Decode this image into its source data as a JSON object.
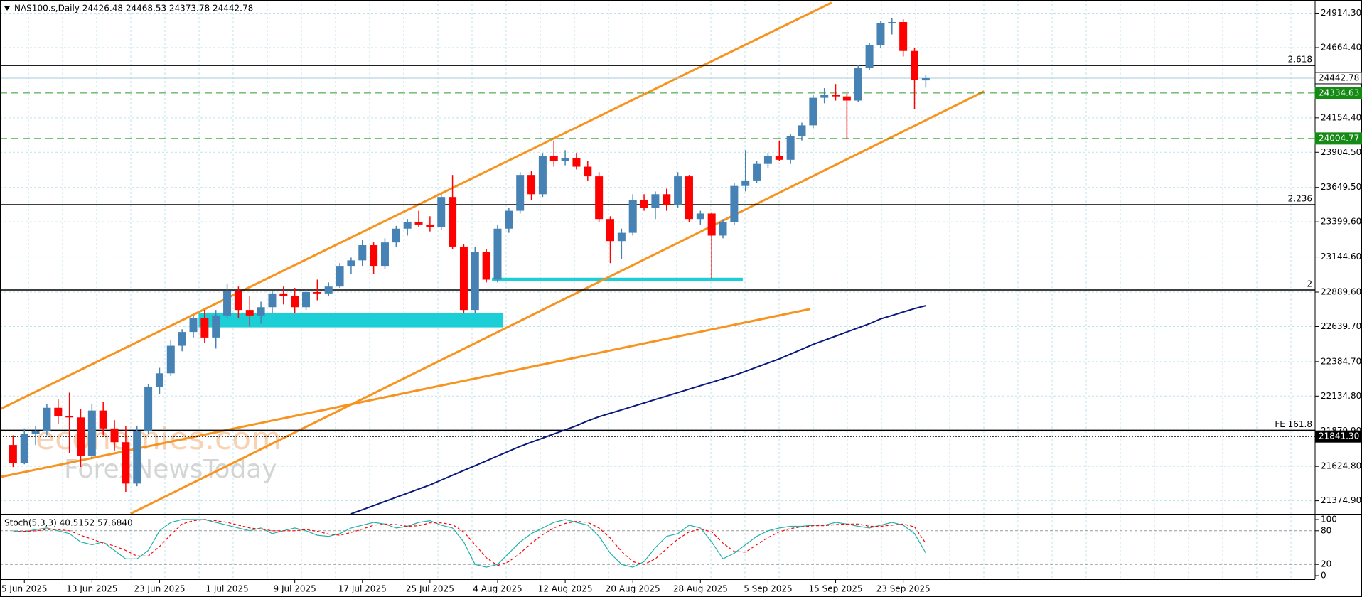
{
  "chart_data": {
    "type": "candlestick",
    "title": "NAS100.s,Daily 24426.48 24468.53 24373.78 24442.78",
    "watermark": [
      "economies.com",
      "ForexNewsToday"
    ],
    "categories": [
      null,
      "5 Jun 2025",
      null,
      null,
      null,
      null,
      null,
      "13 Jun 2025",
      null,
      null,
      null,
      null,
      null,
      "23 Jun 2025",
      null,
      null,
      null,
      null,
      null,
      "1 Jul 2025",
      null,
      null,
      null,
      null,
      null,
      "9 Jul 2025",
      null,
      null,
      null,
      null,
      null,
      "17 Jul 2025",
      null,
      null,
      null,
      null,
      null,
      "25 Jul 2025",
      null,
      null,
      null,
      null,
      null,
      "4 Aug 2025",
      null,
      null,
      null,
      null,
      null,
      "12 Aug 2025",
      null,
      null,
      null,
      null,
      null,
      "20 Aug 2025",
      null,
      null,
      null,
      null,
      null,
      "28 Aug 2025",
      null,
      null,
      null,
      null,
      null,
      "5 Sep 2025",
      null,
      null,
      null,
      null,
      null,
      "15 Sep 2025",
      null,
      null,
      null,
      null,
      null,
      "23 Sep 2025",
      null,
      null
    ],
    "open": [
      21780,
      21650,
      21860,
      21880,
      22050,
      21990,
      21980,
      21700,
      22030,
      21900,
      21800,
      21500,
      21880,
      22200,
      22300,
      22500,
      22600,
      22700,
      22560,
      22720,
      22900,
      22760,
      22720,
      22780,
      22880,
      22860,
      22780,
      22890,
      22880,
      22930,
      23080,
      23120,
      23230,
      23080,
      23250,
      23350,
      23400,
      23380,
      23360,
      23580,
      23220,
      22760,
      23180,
      22980,
      23350,
      23480,
      23740,
      23600,
      23880,
      23840,
      23860,
      23800,
      23730,
      23420,
      23260,
      23320,
      23560,
      23500,
      23600,
      23520,
      23730,
      23420,
      23460,
      23300,
      23400,
      23660,
      23700,
      23820,
      23880,
      23850,
      24020,
      24100,
      24300,
      24320,
      24310,
      24280,
      24520,
      24680,
      24840,
      24850,
      24640,
      24426.48
    ],
    "high": [
      21850,
      21900,
      21920,
      22080,
      22110,
      22160,
      22040,
      22080,
      22090,
      21960,
      21920,
      21920,
      22220,
      22340,
      22540,
      22620,
      22720,
      22760,
      22760,
      22950,
      22930,
      22860,
      22820,
      22900,
      22930,
      22920,
      22910,
      22980,
      22960,
      23100,
      23140,
      23270,
      23250,
      23280,
      23370,
      23420,
      23480,
      23440,
      23600,
      23740,
      23240,
      23220,
      23200,
      23380,
      23500,
      23760,
      23770,
      23900,
      23990,
      23920,
      23900,
      23840,
      23760,
      23440,
      23350,
      23600,
      23600,
      23620,
      23640,
      23760,
      23740,
      23480,
      23470,
      23420,
      23680,
      23920,
      23840,
      23900,
      23990,
      24040,
      24120,
      24320,
      24370,
      24400,
      24330,
      24540,
      24700,
      24860,
      24880,
      24870,
      24660,
      24468.53
    ],
    "low": [
      21620,
      21640,
      21780,
      21850,
      21930,
      21720,
      21620,
      21680,
      21850,
      21740,
      21440,
      21480,
      21860,
      22150,
      22280,
      22460,
      22560,
      22520,
      22480,
      22700,
      22700,
      22640,
      22660,
      22740,
      22800,
      22740,
      22760,
      22830,
      22860,
      22920,
      23020,
      23080,
      23020,
      23060,
      23220,
      23300,
      23360,
      23330,
      23340,
      23200,
      22740,
      22740,
      22960,
      22960,
      23320,
      23460,
      23560,
      23580,
      23800,
      23810,
      23780,
      23700,
      23400,
      23100,
      23130,
      23300,
      23480,
      23420,
      23480,
      23500,
      23400,
      23380,
      22990,
      23280,
      23380,
      23620,
      23680,
      23790,
      23840,
      23820,
      23990,
      24080,
      24260,
      24280,
      24000,
      24270,
      24500,
      24660,
      24760,
      24600,
      24220,
      24373.78
    ],
    "close": [
      21650,
      21860,
      21880,
      22050,
      21990,
      21980,
      21700,
      22030,
      21900,
      21800,
      21500,
      21880,
      22200,
      22300,
      22500,
      22600,
      22700,
      22560,
      22720,
      22900,
      22760,
      22720,
      22780,
      22880,
      22860,
      22780,
      22890,
      22880,
      22930,
      23080,
      23120,
      23230,
      23080,
      23250,
      23350,
      23400,
      23380,
      23360,
      23580,
      23220,
      22760,
      23180,
      22980,
      23350,
      23480,
      23740,
      23600,
      23880,
      23840,
      23860,
      23800,
      23730,
      23420,
      23260,
      23320,
      23560,
      23500,
      23600,
      23520,
      23730,
      23420,
      23460,
      23300,
      23400,
      23660,
      23700,
      23820,
      23880,
      23850,
      24020,
      24100,
      24300,
      24320,
      24310,
      24280,
      24520,
      24680,
      24840,
      24850,
      24640,
      24430,
      24442.78
    ],
    "up_color": "#4682b4",
    "down_color": "#ff0000",
    "ma": {
      "color": "#0a1a7a",
      "values": [
        null,
        null,
        null,
        null,
        null,
        null,
        null,
        null,
        null,
        null,
        null,
        null,
        null,
        null,
        null,
        null,
        null,
        null,
        null,
        null,
        null,
        null,
        null,
        null,
        null,
        null,
        null,
        null,
        null,
        null,
        21280,
        21310,
        21340,
        21370,
        21400,
        21430,
        21460,
        21490,
        21525,
        21560,
        21595,
        21630,
        21665,
        21700,
        21735,
        21770,
        21800,
        21830,
        21860,
        21890,
        21920,
        21955,
        21985,
        22010,
        22035,
        22060,
        22085,
        22110,
        22135,
        22160,
        22185,
        22210,
        22235,
        22260,
        22285,
        22315,
        22345,
        22375,
        22405,
        22440,
        22475,
        22510,
        22540,
        22570,
        22600,
        22630,
        22660,
        22695,
        22720,
        22745,
        22770,
        22791
      ]
    },
    "ylim": [
      21280,
      25010
    ],
    "yticks": [
      {
        "value": 24914.3,
        "label": "24914.30"
      },
      {
        "value": 24664.4,
        "label": "24664.40"
      },
      {
        "value": 24154.4,
        "label": "24154.40"
      },
      {
        "value": 23904.5,
        "label": "23904.50"
      },
      {
        "value": 23649.5,
        "label": "23649.50"
      },
      {
        "value": 23399.6,
        "label": "23399.60"
      },
      {
        "value": 23144.6,
        "label": "23144.60"
      },
      {
        "value": 22889.6,
        "label": "22889.60"
      },
      {
        "value": 22639.7,
        "label": "22639.70"
      },
      {
        "value": 22384.7,
        "label": "22384.70"
      },
      {
        "value": 22134.8,
        "label": "22134.80"
      },
      {
        "value": 21879.9,
        "label": "21879.90"
      },
      {
        "value": 21624.8,
        "label": "21624.80"
      },
      {
        "value": 21374.9,
        "label": "21374.90"
      }
    ],
    "grid": true,
    "levels": [
      {
        "value": 24535,
        "label": "2.618"
      },
      {
        "value": 23524,
        "label": "2.236"
      },
      {
        "value": 22905,
        "label": "2"
      },
      {
        "value": 21887,
        "label": "FE 161.8"
      }
    ],
    "markers": [
      {
        "value": 24442.78,
        "style": "current"
      },
      {
        "value": 24334.63,
        "style": "green"
      },
      {
        "value": 24004.77,
        "style": "green"
      },
      {
        "value": 21841.3,
        "label": "21841.30",
        "style": "dark"
      }
    ],
    "stoch": {
      "title": "Stoch(5,3,3) 40.5152 57.6840",
      "ylim": [
        0,
        100
      ],
      "yticks": [
        100,
        80,
        20,
        0
      ],
      "levels": [
        80,
        20
      ],
      "main": {
        "color": "#20b2aa",
        "values": [
          80,
          78,
          82,
          85,
          80,
          75,
          60,
          55,
          60,
          45,
          30,
          30,
          45,
          80,
          95,
          100,
          100,
          100,
          95,
          90,
          85,
          80,
          85,
          75,
          80,
          85,
          80,
          72,
          70,
          75,
          85,
          90,
          95,
          92,
          85,
          88,
          95,
          98,
          90,
          85,
          60,
          20,
          15,
          20,
          40,
          60,
          75,
          85,
          95,
          100,
          95,
          90,
          70,
          40,
          20,
          15,
          25,
          50,
          70,
          75,
          90,
          85,
          60,
          30,
          40,
          55,
          70,
          80,
          85,
          88,
          88,
          90,
          90,
          95,
          92,
          88,
          85,
          90,
          95,
          90,
          75,
          40.5152
        ]
      },
      "signal": {
        "color": "#ff0000",
        "values": [
          78,
          79,
          80,
          82,
          82,
          80,
          72,
          65,
          58,
          53,
          45,
          35,
          35,
          52,
          73,
          92,
          98,
          100,
          98,
          95,
          90,
          85,
          83,
          80,
          80,
          80,
          82,
          79,
          74,
          72,
          77,
          83,
          90,
          92,
          91,
          88,
          89,
          94,
          94,
          91,
          78,
          55,
          32,
          18,
          25,
          40,
          58,
          73,
          85,
          93,
          97,
          95,
          85,
          67,
          43,
          25,
          20,
          30,
          48,
          65,
          78,
          83,
          78,
          58,
          43,
          42,
          55,
          68,
          78,
          84,
          87,
          89,
          89,
          91,
          92,
          92,
          88,
          88,
          90,
          92,
          87,
          57.684
        ]
      }
    }
  }
}
